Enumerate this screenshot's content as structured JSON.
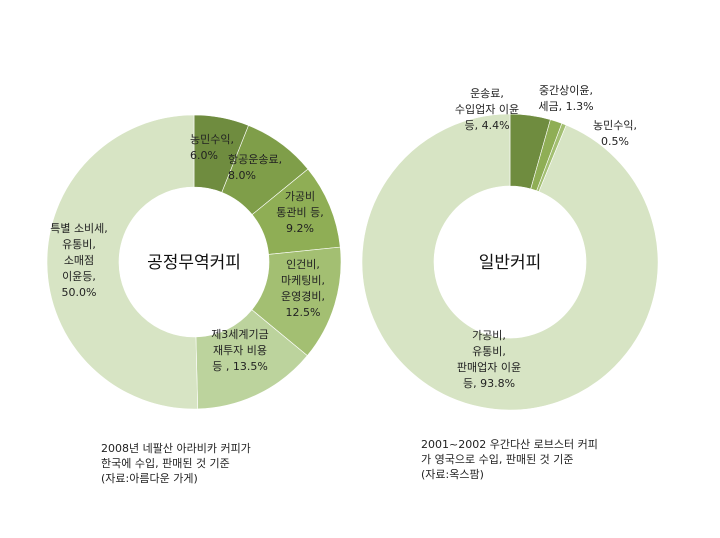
{
  "colors": {
    "dark": "#6f8c3f",
    "mid": "#8fae55",
    "mid2": "#a3bf72",
    "light": "#bcd39d",
    "pale": "#d7e4c4",
    "accent": "#7da043"
  },
  "chart_data": [
    {
      "type": "pie",
      "center_label": "공정무역커피",
      "unit": "%",
      "slices": [
        {
          "lines": [
            "농민수익,",
            "6.0%"
          ],
          "value": 6.0,
          "color": "#6f8c3f"
        },
        {
          "lines": [
            "항공운송료,",
            "8.0%"
          ],
          "value": 8.0,
          "color": "#7f9e49"
        },
        {
          "lines": [
            "가공비",
            "통관비 등,",
            "9.2%"
          ],
          "value": 9.2,
          "color": "#8fae55"
        },
        {
          "lines": [
            "인건비,",
            "마케팅비,",
            "운영경비,",
            "12.5%"
          ],
          "value": 12.5,
          "color": "#a3bf72"
        },
        {
          "lines": [
            "제3세계기금",
            "재투자 비용",
            "등 , 13.5%"
          ],
          "value": 13.5,
          "color": "#bcd39d"
        },
        {
          "lines": [
            "특별 소비세,",
            "유통비,",
            "소매점",
            "이윤등,",
            "50.0%"
          ],
          "value": 50.0,
          "color": "#d7e4c4"
        }
      ],
      "caption": [
        "2008년 네팔산 아라비카 커피가",
        "한국에 수입, 판매된 것 기준",
        "(자료:아름다운 가게)"
      ]
    },
    {
      "type": "pie",
      "center_label": "일반커피",
      "unit": "%",
      "slices": [
        {
          "lines": [
            "운송료,",
            "수입업자 이윤",
            "등, 4.4%"
          ],
          "value": 4.4,
          "color": "#6f8c3f"
        },
        {
          "lines": [
            "중간상이윤,",
            "세금, 1.3%"
          ],
          "value": 1.3,
          "color": "#8fae55"
        },
        {
          "lines": [
            "농민수익,",
            "0.5%"
          ],
          "value": 0.5,
          "color": "#a3bf72"
        },
        {
          "lines": [
            "가공비,",
            "유통비,",
            "판매업자 이윤",
            "등, 93.8%"
          ],
          "value": 93.8,
          "color": "#d7e4c4"
        }
      ],
      "caption": [
        "2001~2002 우간다산 로브스터 커피",
        "가 영국으로 수입, 판매된 것 기준",
        "(자료:옥스팜)"
      ]
    }
  ]
}
